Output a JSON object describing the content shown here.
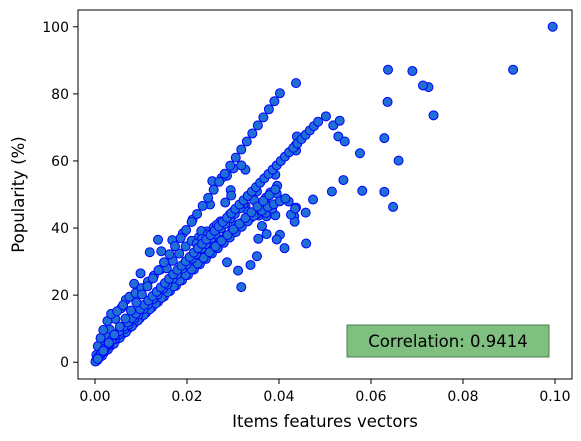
{
  "chart_data": {
    "type": "scatter",
    "title": "",
    "xlabel": "Items features vectors",
    "ylabel": "Popularity (%)",
    "xlim": [
      -0.0037,
      0.1037
    ],
    "ylim": [
      -5.0,
      105.0
    ],
    "xticks": [
      0.0,
      0.02,
      0.04,
      0.06,
      0.08,
      0.1
    ],
    "xtick_labels": [
      "0.00",
      "0.02",
      "0.04",
      "0.06",
      "0.08",
      "0.10"
    ],
    "yticks": [
      0,
      20,
      40,
      60,
      80,
      100
    ],
    "ytick_labels": [
      "0",
      "20",
      "40",
      "60",
      "80",
      "100"
    ],
    "grid": false,
    "legend": null,
    "colors": {
      "marker_face": "#1f6fd6",
      "marker_edge": "#0000ff",
      "annot_bg": "#7fbf7f",
      "annot_edge": "#4d7f4d"
    },
    "annotation": {
      "text": "Correlation: 0.9414",
      "position": "bottom-right"
    },
    "series": [
      {
        "x": [
          0.0995,
          0.0909,
          0.0725,
          0.0713,
          0.069,
          0.0637,
          0.0636,
          0.0437,
          0.0736,
          0.0629,
          0.066,
          0.0581,
          0.054,
          0.0515,
          0.0502,
          0.0518,
          0.0529,
          0.0437,
          0.0437,
          0.0439,
          0.0629,
          0.0648,
          0.0543,
          0.0576,
          0.0532,
          0.0474,
          0.0437,
          0.0433,
          0.0459,
          0.0412,
          0.0434,
          0.0426,
          0.0402,
          0.0458,
          0.0435,
          0.0392,
          0.0352,
          0.0338,
          0.0311,
          0.0318,
          0.0287,
          0.0355,
          0.0363,
          0.0373,
          0.0395,
          0.0356,
          0.0381,
          0.0421,
          0.0392,
          0.0396,
          0.0371,
          0.0337,
          0.0327,
          0.0301,
          0.0273,
          0.0258,
          0.0265,
          0.0243,
          0.0253,
          0.0327,
          0.0372,
          0.0395,
          0.0352,
          0.0295,
          0.0287,
          0.0275,
          0.0301,
          0.0255,
          0.0318,
          0.0296,
          0.0373,
          0.0323,
          0.0283,
          0.025,
          0.0226,
          0.0231,
          0.0212,
          0.0191,
          0.0168,
          0.0144,
          0.0137,
          0.0119,
          0.0099,
          0.0085,
          0.0067,
          0.0057,
          0.0044,
          0.0032,
          0.0024,
          0.0016,
          0.001,
          0.0005,
          0.0002,
          0.0003,
          0.0006,
          0.0012,
          0.0018,
          0.0027,
          0.0035,
          0.0048,
          0.0061,
          0.0075,
          0.0088,
          0.0101,
          0.0115,
          0.0128,
          0.0142,
          0.0156,
          0.0169,
          0.0183,
          0.0197,
          0.021,
          0.0221,
          0.0233,
          0.0245,
          0.0257,
          0.0269,
          0.0281,
          0.0293,
          0.0305,
          0.0319,
          0.0333,
          0.0346,
          0.0359,
          0.0372,
          0.0385,
          0.0012,
          0.0025,
          0.0038,
          0.0051,
          0.0064,
          0.0077,
          0.009,
          0.0103,
          0.0116,
          0.0129,
          0.0142,
          0.0155,
          0.0168,
          0.0181,
          0.0194,
          0.0207,
          0.022,
          0.0233,
          0.0246,
          0.0259,
          0.0272,
          0.0285,
          0.0298,
          0.0311,
          0.0324,
          0.0337,
          0.035,
          0.0363,
          0.0376,
          0.0389,
          0.0402,
          0.0414,
          0.0008,
          0.002,
          0.0033,
          0.0046,
          0.0059,
          0.0072,
          0.0085,
          0.0098,
          0.0111,
          0.0124,
          0.0137,
          0.015,
          0.0163,
          0.0176,
          0.0189,
          0.0202,
          0.0215,
          0.0228,
          0.0241,
          0.0254,
          0.0267,
          0.028,
          0.0293,
          0.0306,
          0.0319,
          0.0332,
          0.0345,
          0.0005,
          0.0015,
          0.0028,
          0.0041,
          0.0054,
          0.0067,
          0.008,
          0.0093,
          0.0106,
          0.0119,
          0.0132,
          0.0145,
          0.0158,
          0.0171,
          0.0184,
          0.0197,
          0.021,
          0.0223,
          0.0236,
          0.0249,
          0.0262,
          0.0275,
          0.0288,
          0.0301,
          0.0314,
          0.0327,
          0.034,
          0.0353,
          0.0366,
          0.0379,
          0.0392,
          0.0004,
          0.0011,
          0.0022,
          0.0031,
          0.0043,
          0.0052,
          0.0064,
          0.0073,
          0.0085,
          0.0094,
          0.0106,
          0.0115,
          0.0127,
          0.0136,
          0.0148,
          0.0157,
          0.0169,
          0.0178,
          0.019,
          0.0199,
          0.0211,
          0.022,
          0.0232,
          0.0241,
          0.0253,
          0.0262,
          0.0274,
          0.0283,
          0.0295,
          0.0304,
          0.0316,
          0.0001,
          0.0007,
          0.0014,
          0.0021,
          0.0029,
          0.0037,
          0.0045,
          0.0053,
          0.0062,
          0.0071,
          0.008,
          0.0089,
          0.0098,
          0.0107,
          0.0116,
          0.0125,
          0.0134,
          0.0143,
          0.0152,
          0.0161,
          0.017,
          0.0179,
          0.0188,
          0.0197,
          0.0206,
          0.0215,
          0.0224,
          0.0233,
          0.0242,
          0.0251,
          0.026,
          0.0269,
          0.0278,
          0.0287,
          0.0296,
          0.0305,
          0.0314,
          0.0323,
          0.0332,
          0.0341,
          0.035,
          0.0359,
          0.0368,
          0.0377,
          0.0386,
          0.0395,
          0.0404,
          0.0413,
          0.0422,
          0.0431,
          0.044,
          0.0449,
          0.0458,
          0.0467,
          0.0476,
          0.0485,
          0.0006,
          0.0018,
          0.003,
          0.0042,
          0.0054,
          0.0066,
          0.0078,
          0.009,
          0.0102,
          0.0114,
          0.0126,
          0.0138,
          0.015,
          0.0162,
          0.0174,
          0.0186,
          0.0198,
          0.021,
          0.0222,
          0.0234,
          0.0246,
          0.0258,
          0.027,
          0.0282,
          0.0294,
          0.0306,
          0.0318,
          0.033,
          0.0342,
          0.0354,
          0.0366,
          0.0378,
          0.039,
          0.0402
        ],
        "y": [
          100.0,
          87.2,
          82.0,
          82.5,
          86.8,
          87.2,
          77.6,
          83.2,
          73.6,
          66.8,
          60.1,
          51.1,
          54.3,
          50.9,
          73.3,
          70.6,
          67.3,
          63.1,
          64.8,
          67.3,
          50.8,
          46.3,
          65.8,
          62.3,
          72.0,
          48.5,
          46.1,
          43.5,
          35.4,
          34.0,
          41.9,
          44.0,
          38.0,
          44.6,
          45.8,
          43.8,
          31.6,
          29.0,
          27.3,
          22.4,
          29.8,
          36.8,
          40.6,
          38.2,
          36.6,
          43.7,
          50.6,
          47.9,
          55.9,
          52.6,
          48.8,
          49.5,
          46.7,
          45.0,
          42.0,
          40.2,
          41.0,
          39.0,
          38.0,
          57.4,
          49.1,
          50.3,
          50.9,
          51.3,
          55.6,
          54.9,
          57.8,
          54.0,
          58.7,
          49.7,
          43.5,
          47.0,
          47.6,
          47.0,
          37.3,
          39.1,
          42.5,
          38.4,
          36.4,
          33.1,
          36.5,
          32.8,
          26.5,
          23.4,
          18.6,
          16.1,
          12.9,
          9.8,
          7.6,
          5.6,
          3.3,
          1.6,
          0.4,
          2.2,
          4.8,
          7.2,
          9.6,
          12.3,
          14.4,
          15.2,
          17.0,
          19.5,
          20.6,
          22.1,
          24.0,
          25.8,
          27.6,
          28.0,
          30.2,
          32.4,
          34.5,
          36.2,
          35.4,
          36.8,
          38.1,
          37.9,
          40.1,
          41.2,
          44.0,
          40.8,
          41.5,
          44.9,
          48.3,
          45.0,
          44.5,
          45.7,
          2.1,
          4.0,
          6.5,
          8.1,
          10.3,
          11.9,
          14.2,
          15.0,
          17.3,
          18.6,
          20.3,
          21.9,
          23.6,
          25.5,
          27.1,
          29.0,
          30.8,
          31.9,
          33.6,
          34.9,
          36.5,
          37.6,
          39.1,
          40.5,
          41.8,
          42.9,
          44.0,
          45.2,
          46.3,
          47.1,
          48.0,
          48.8,
          1.2,
          3.0,
          4.8,
          6.7,
          8.4,
          10.0,
          11.6,
          13.2,
          14.8,
          16.4,
          18.0,
          19.6,
          21.2,
          22.8,
          24.4,
          26.0,
          27.6,
          29.2,
          30.8,
          32.4,
          34.0,
          35.6,
          37.2,
          38.8,
          40.4,
          42.0,
          43.6,
          0.6,
          1.9,
          3.8,
          5.5,
          7.3,
          9.0,
          10.7,
          12.4,
          14.1,
          15.8,
          17.5,
          19.2,
          20.9,
          22.6,
          24.3,
          26.0,
          27.7,
          29.4,
          31.1,
          32.8,
          34.5,
          36.2,
          37.9,
          39.6,
          41.3,
          43.0,
          44.7,
          46.4,
          48.1,
          49.8,
          51.5,
          0.8,
          2.2,
          3.9,
          5.2,
          6.9,
          8.2,
          9.9,
          11.2,
          12.9,
          14.2,
          15.9,
          17.2,
          18.9,
          20.2,
          21.9,
          23.2,
          24.9,
          26.2,
          27.9,
          29.2,
          30.9,
          32.2,
          33.9,
          35.2,
          36.9,
          38.2,
          39.9,
          41.2,
          42.9,
          44.2,
          45.9,
          0.2,
          1.5,
          2.8,
          4.1,
          5.4,
          6.7,
          8.0,
          9.3,
          10.6,
          11.9,
          13.2,
          14.5,
          15.8,
          17.1,
          18.4,
          19.7,
          21.0,
          22.3,
          23.6,
          24.9,
          26.2,
          27.5,
          28.8,
          30.1,
          31.4,
          32.7,
          34.0,
          35.3,
          36.6,
          37.9,
          39.2,
          40.5,
          41.8,
          43.1,
          44.4,
          45.7,
          47.0,
          48.3,
          49.6,
          50.9,
          52.2,
          53.5,
          54.8,
          56.1,
          57.4,
          58.7,
          60.0,
          61.3,
          62.6,
          63.9,
          65.2,
          66.5,
          67.8,
          69.1,
          70.4,
          71.7,
          1.0,
          3.4,
          5.8,
          8.2,
          10.6,
          13.0,
          15.4,
          17.8,
          20.2,
          22.6,
          25.0,
          27.4,
          29.8,
          32.2,
          34.6,
          37.0,
          39.4,
          41.8,
          44.2,
          46.6,
          49.0,
          51.4,
          53.8,
          56.2,
          58.6,
          61.0,
          63.4,
          65.8,
          68.2,
          70.6,
          73.0,
          75.4,
          77.8,
          80.2
        ]
      }
    ]
  }
}
